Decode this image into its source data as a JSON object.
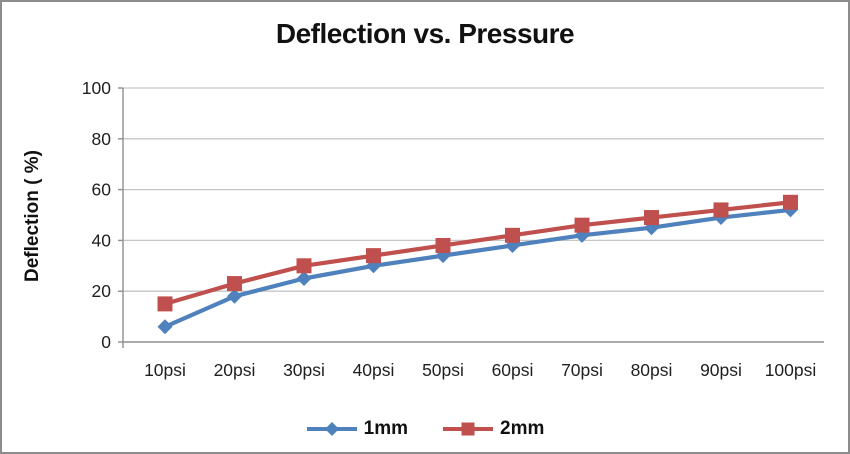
{
  "window": {
    "background": "#ffffff",
    "border_color": "#8c8c8c"
  },
  "chart_data": {
    "type": "line",
    "title": "Deflection vs. Pressure",
    "xlabel": "",
    "ylabel": "Deflection ( %)",
    "categories": [
      "10psi",
      "20psi",
      "30psi",
      "40psi",
      "50psi",
      "60psi",
      "70psi",
      "80psi",
      "90psi",
      "100psi"
    ],
    "series": [
      {
        "name": "1mm",
        "color": "#4F81BD",
        "marker": "diamond",
        "values": [
          6,
          18,
          25,
          30,
          34,
          38,
          42,
          45,
          49,
          52
        ]
      },
      {
        "name": "2mm",
        "color": "#C0504D",
        "marker": "square",
        "values": [
          15,
          23,
          30,
          34,
          38,
          42,
          46,
          49,
          52,
          55
        ]
      }
    ],
    "ylim": [
      0,
      100
    ],
    "yticks": [
      0,
      20,
      40,
      60,
      80,
      100
    ],
    "grid": "horizontal",
    "legend_position": "bottom",
    "gridline_color": "#c6c6c6",
    "axis_color": "#8f8f8f",
    "tick_label_color": "#1f1f1f"
  }
}
